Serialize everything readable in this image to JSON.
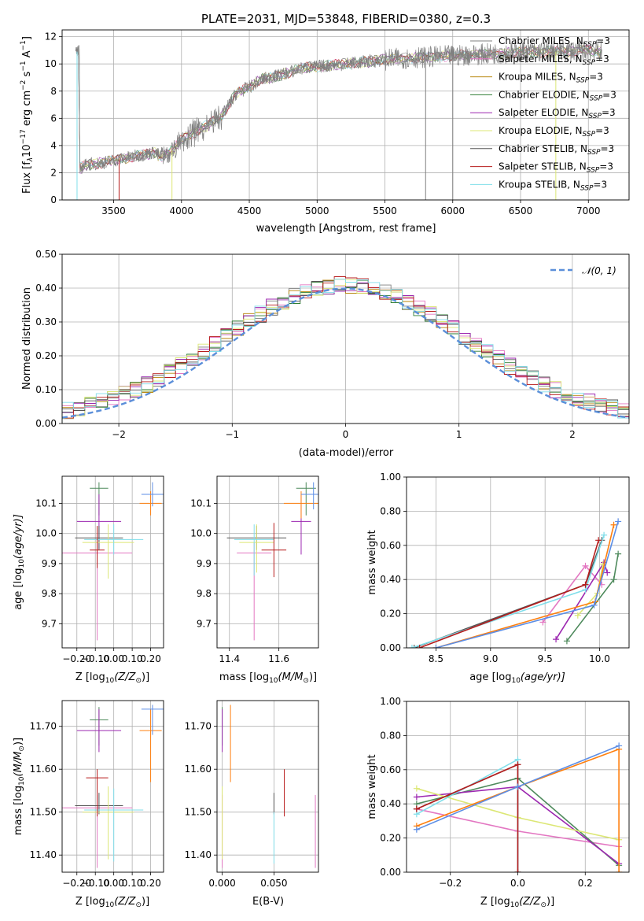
{
  "title": "PLATE=2031, MJD=53848, FIBERID=0380, z=0.3",
  "colors": {
    "model_palette": [
      "#7f7f7f",
      "#e377c2",
      "#b8860b",
      "#2e7d32",
      "#9c27b0",
      "#dce775",
      "#555555",
      "#b71c1c",
      "#80deea",
      "#ff7f0e",
      "#5c8ee6",
      "#4e8a5c"
    ],
    "gaussian": "#5b8fd9"
  },
  "legend_entries": [
    {
      "label": "Chabrier MILES, N",
      "sub": "SSP",
      "suffix": "=3",
      "color": "#7f7f7f"
    },
    {
      "label": "Salpeter MILES, N",
      "sub": "SSP",
      "suffix": "=3",
      "color": "#e377c2"
    },
    {
      "label": "Kroupa MILES, N",
      "sub": "SSP",
      "suffix": "=3",
      "color": "#b8860b"
    },
    {
      "label": "Chabrier ELODIE, N",
      "sub": "SSP",
      "suffix": "=3",
      "color": "#2e7d32"
    },
    {
      "label": "Salpeter ELODIE, N",
      "sub": "SSP",
      "suffix": "=3",
      "color": "#9c27b0"
    },
    {
      "label": "Kroupa ELODIE, N",
      "sub": "SSP",
      "suffix": "=3",
      "color": "#dce775"
    },
    {
      "label": "Chabrier STELIB, N",
      "sub": "SSP",
      "suffix": "=3",
      "color": "#555555"
    },
    {
      "label": "Salpeter STELIB, N",
      "sub": "SSP",
      "suffix": "=3",
      "color": "#b71c1c"
    },
    {
      "label": "Kroupa STELIB, N",
      "sub": "SSP",
      "suffix": "=3",
      "color": "#80deea"
    }
  ],
  "chart_data": [
    {
      "id": "spectrum",
      "type": "line",
      "xlabel": "wavelength [Angstrom, rest frame]",
      "ylabel": "Flux [f",
      "ylabel_sub": "λ",
      "ylabel_rest": "10",
      "ylabel_exp": "−17",
      "ylabel_tail": " erg cm",
      "ylabel_exp2": "−2",
      "ylabel_tail2": " s",
      "ylabel_exp3": "−1",
      "ylabel_tail3": " A",
      "ylabel_exp4": "−1",
      "ylabel_end": "]",
      "xlim": [
        3120,
        7300
      ],
      "ylim": [
        0,
        12.5
      ],
      "xticks": [
        3500,
        4000,
        4500,
        5000,
        5500,
        6000,
        6500,
        7000
      ],
      "yticks": [
        0,
        2,
        4,
        6,
        8,
        10,
        12
      ],
      "series_trend": {
        "x": [
          3250,
          3300,
          3400,
          3500,
          3600,
          3700,
          3800,
          3850,
          3900,
          3950,
          4000,
          4100,
          4200,
          4300,
          4400,
          4500,
          4600,
          4700,
          4800,
          4900,
          5000,
          5200,
          5400,
          5600,
          5800,
          6000,
          6200,
          6400,
          6600,
          6800,
          7000,
          7100
        ],
        "y": [
          2.3,
          2.6,
          2.7,
          2.9,
          3.1,
          3.3,
          3.5,
          3.2,
          3.4,
          3.8,
          4.5,
          5.0,
          5.5,
          6.2,
          7.8,
          8.3,
          8.9,
          9.1,
          9.4,
          9.7,
          9.8,
          10.0,
          10.2,
          10.4,
          10.5,
          10.6,
          10.7,
          10.8,
          10.9,
          10.9,
          11.0,
          10.9
        ]
      }
    },
    {
      "id": "residuals",
      "type": "histogram",
      "xlabel": "(data-model)/error",
      "ylabel": "Normed distribution",
      "xlim": [
        -2.5,
        2.5
      ],
      "ylim": [
        0,
        0.5
      ],
      "xticks": [
        -2,
        -1,
        0,
        1,
        2
      ],
      "yticks": [
        0.0,
        0.1,
        0.2,
        0.3,
        0.4,
        0.5
      ],
      "legend": "𝒩(0, 1)",
      "bins": 50
    },
    {
      "id": "age-vs-Z",
      "type": "scatter",
      "xlabel": "Z [log",
      "xlabel_sub": "10",
      "xlabel_rest": "(Z/Z",
      "xlabel_sub2": "⊙",
      "xlabel_end": ")]",
      "ylabel": "age  [log",
      "ylabel_sub": "10",
      "ylabel_rest": "(age/yr)]",
      "xlim": [
        -0.28,
        0.27
      ],
      "ylim": [
        9.62,
        10.19
      ],
      "xticks": [
        -0.2,
        -0.1,
        0.0,
        0.1,
        0.2
      ],
      "yticks": [
        9.7,
        9.8,
        9.9,
        10.0,
        10.1
      ],
      "points": [
        {
          "x": -0.09,
          "y": 9.935,
          "xerr": 0.19,
          "yerr": [
            0.29,
            0.035
          ],
          "color": "#e377c2"
        },
        {
          "x": -0.08,
          "y": 10.15,
          "xerr": 0.05,
          "yerr": [
            0.09,
            0.02
          ],
          "color": "#4e8a5c"
        },
        {
          "x": -0.08,
          "y": 10.04,
          "xerr": 0.12,
          "yerr": [
            0.09,
            0.09
          ],
          "color": "#9c27b0"
        },
        {
          "x": -0.08,
          "y": 9.985,
          "xerr": 0.13,
          "yerr": [
            0.04,
            0.04
          ],
          "color": "#555555"
        },
        {
          "x": -0.03,
          "y": 9.97,
          "xerr": 0.14,
          "yerr": [
            0.12,
            0.06
          ],
          "color": "#dce775"
        },
        {
          "x": 0.0,
          "y": 9.98,
          "xerr": 0.16,
          "yerr": [
            0.05,
            0.05
          ],
          "color": "#80deea"
        },
        {
          "x": -0.09,
          "y": 9.945,
          "xerr": 0.04,
          "yerr": [
            0.06,
            0.08
          ],
          "color": "#b71c1c"
        },
        {
          "x": 0.2,
          "y": 10.1,
          "xerr": 0.06,
          "yerr": [
            0.04,
            0.04
          ],
          "color": "#ff7f0e"
        },
        {
          "x": 0.21,
          "y": 10.13,
          "xerr": 0.06,
          "yerr": [
            0.04,
            0.04
          ],
          "color": "#5c8ee6"
        }
      ]
    },
    {
      "id": "age-vs-mass",
      "type": "scatter",
      "xlabel": "mass [log",
      "xlabel_sub": "10",
      "xlabel_rest": "(M/M",
      "xlabel_sub2": "⊙",
      "xlabel_end": ")]",
      "xlim": [
        11.35,
        11.76
      ],
      "ylim": [
        9.62,
        10.19
      ],
      "xticks": [
        11.4,
        11.6
      ],
      "yticks": [
        9.7,
        9.8,
        9.9,
        10.0,
        10.1
      ],
      "points": [
        {
          "x": 11.5,
          "y": 9.935,
          "xerr": 0.07,
          "yerr": [
            0.29,
            0.035
          ],
          "color": "#e377c2"
        },
        {
          "x": 11.71,
          "y": 10.15,
          "xerr": 0.04,
          "yerr": [
            0.09,
            0.02
          ],
          "color": "#4e8a5c"
        },
        {
          "x": 11.69,
          "y": 10.04,
          "xerr": 0.04,
          "yerr": [
            0.11,
            0.09
          ],
          "color": "#9c27b0"
        },
        {
          "x": 11.51,
          "y": 9.985,
          "xerr": 0.12,
          "yerr": [
            0.04,
            0.04
          ],
          "color": "#555555"
        },
        {
          "x": 11.51,
          "y": 9.97,
          "xerr": 0.07,
          "yerr": [
            0.1,
            0.06
          ],
          "color": "#dce775"
        },
        {
          "x": 11.5,
          "y": 9.98,
          "xerr": 0.08,
          "yerr": [
            0.12,
            0.05
          ],
          "color": "#80deea"
        },
        {
          "x": 11.58,
          "y": 9.945,
          "xerr": 0.05,
          "yerr": [
            0.09,
            0.09
          ],
          "color": "#b71c1c"
        },
        {
          "x": 11.69,
          "y": 10.1,
          "xerr": 0.07,
          "yerr": [
            0.05,
            0.04
          ],
          "color": "#ff7f0e"
        },
        {
          "x": 11.74,
          "y": 10.13,
          "xerr": 0.05,
          "yerr": [
            0.05,
            0.04
          ],
          "color": "#5c8ee6"
        }
      ]
    },
    {
      "id": "mass-weight-vs-age",
      "type": "line",
      "xlabel": "age  [log",
      "xlabel_sub": "10",
      "xlabel_rest": "(age/yr)]",
      "ylabel": "mass weight",
      "xlim": [
        8.23,
        10.27
      ],
      "ylim": [
        0,
        1.0
      ],
      "xticks": [
        8.5,
        9.0,
        9.5,
        10.0
      ],
      "yticks": [
        0.0,
        0.2,
        0.4,
        0.6,
        0.8,
        1.0
      ],
      "series": [
        {
          "color": "#e377c2",
          "x": [
            9.48,
            9.87,
            10.02
          ],
          "y": [
            0.15,
            0.48,
            0.37
          ]
        },
        {
          "color": "#4e8a5c",
          "x": [
            9.7,
            10.13,
            10.17
          ],
          "y": [
            0.04,
            0.4,
            0.55
          ]
        },
        {
          "color": "#9c27b0",
          "x": [
            9.6,
            10.04,
            10.07
          ],
          "y": [
            0.05,
            0.5,
            0.44
          ]
        },
        {
          "color": "#555555",
          "x": [
            8.3,
            9.87,
            10.02
          ],
          "y": [
            0.0,
            0.37,
            0.63
          ]
        },
        {
          "color": "#dce775",
          "x": [
            9.8,
            9.98,
            10.03
          ],
          "y": [
            0.19,
            0.32,
            0.49
          ]
        },
        {
          "color": "#80deea",
          "x": [
            8.28,
            9.87,
            10.04
          ],
          "y": [
            0.0,
            0.34,
            0.66
          ]
        },
        {
          "color": "#b71c1c",
          "x": [
            8.35,
            9.87,
            9.99
          ],
          "y": [
            0.0,
            0.37,
            0.63
          ]
        },
        {
          "color": "#ff7f0e",
          "x": [
            8.5,
            9.96,
            10.13
          ],
          "y": [
            0.0,
            0.27,
            0.72
          ]
        },
        {
          "color": "#5c8ee6",
          "x": [
            8.5,
            9.95,
            10.17
          ],
          "y": [
            0.0,
            0.25,
            0.74
          ]
        }
      ]
    },
    {
      "id": "mass-vs-Z",
      "type": "scatter",
      "xlabel": "Z [log",
      "xlabel_sub": "10",
      "xlabel_rest": "(Z/Z",
      "xlabel_sub2": "⊙",
      "xlabel_end": ")]",
      "ylabel": "mass [log",
      "ylabel_sub": "10",
      "ylabel_rest": "(M/M",
      "ylabel_sub2": "⊙",
      "ylabel_end": ")]",
      "xlim": [
        -0.28,
        0.27
      ],
      "ylim": [
        11.36,
        11.76
      ],
      "xticks": [
        -0.2,
        -0.1,
        0.0,
        0.1,
        0.2
      ],
      "yticks": [
        11.4,
        11.5,
        11.6,
        11.7
      ],
      "points": [
        {
          "x": -0.09,
          "y": 11.51,
          "xerr": 0.19,
          "yerr": [
            0.14,
            0.03
          ],
          "color": "#e377c2"
        },
        {
          "x": -0.08,
          "y": 11.715,
          "xerr": 0.05,
          "yerr": [
            0.06,
            0.03
          ],
          "color": "#4e8a5c"
        },
        {
          "x": -0.08,
          "y": 11.69,
          "xerr": 0.12,
          "yerr": [
            0.05,
            0.05
          ],
          "color": "#9c27b0"
        },
        {
          "x": -0.08,
          "y": 11.515,
          "xerr": 0.13,
          "yerr": [
            0.02,
            0.03
          ],
          "color": "#555555"
        },
        {
          "x": -0.03,
          "y": 11.5,
          "xerr": 0.14,
          "yerr": [
            0.11,
            0.06
          ],
          "color": "#dce775"
        },
        {
          "x": 0.0,
          "y": 11.505,
          "xerr": 0.16,
          "yerr": [
            0.12,
            0.05
          ],
          "color": "#80deea"
        },
        {
          "x": -0.09,
          "y": 11.58,
          "xerr": 0.06,
          "yerr": [
            0.09,
            0.02
          ],
          "color": "#b71c1c"
        },
        {
          "x": 0.2,
          "y": 11.69,
          "xerr": 0.06,
          "yerr": [
            0.12,
            0.05
          ],
          "color": "#ff7f0e"
        },
        {
          "x": 0.21,
          "y": 11.74,
          "xerr": 0.06,
          "yerr": [
            0.06,
            0.01
          ],
          "color": "#5c8ee6"
        }
      ]
    },
    {
      "id": "mass-vs-ebv",
      "type": "scatter",
      "xlabel": "E(B-V)",
      "xlim": [
        -0.005,
        0.093
      ],
      "ylim": [
        11.36,
        11.76
      ],
      "xticks": [
        0.0,
        0.05
      ],
      "yticks": [
        11.4,
        11.5,
        11.6,
        11.7
      ],
      "points": [
        {
          "x": 0.0,
          "y": 11.51,
          "xerr": 0.0,
          "yerr": [
            0.14,
            0.03
          ],
          "color": "#e377c2"
        },
        {
          "x": 0.0,
          "y": 11.715,
          "xerr": 0.0,
          "yerr": [
            0.06,
            0.03
          ],
          "color": "#4e8a5c"
        },
        {
          "x": 0.0,
          "y": 11.69,
          "xerr": 0.0,
          "yerr": [
            0.05,
            0.05
          ],
          "color": "#9c27b0"
        },
        {
          "x": 0.05,
          "y": 11.515,
          "xerr": 0.0,
          "yerr": [
            0.02,
            0.03
          ],
          "color": "#555555"
        },
        {
          "x": 0.0,
          "y": 11.5,
          "xerr": 0.0,
          "yerr": [
            0.11,
            0.06
          ],
          "color": "#dce775"
        },
        {
          "x": 0.05,
          "y": 11.45,
          "xerr": 0.0,
          "yerr": [
            0.07,
            0.05
          ],
          "color": "#80deea"
        },
        {
          "x": 0.06,
          "y": 11.55,
          "xerr": 0.0,
          "yerr": [
            0.06,
            0.05
          ],
          "color": "#b71c1c"
        },
        {
          "x": 0.008,
          "y": 11.66,
          "xerr": 0.0,
          "yerr": [
            0.09,
            0.09
          ],
          "color": "#ff7f0e"
        },
        {
          "x": 0.09,
          "y": 11.45,
          "xerr": 0.0,
          "yerr": [
            0.08,
            0.09
          ],
          "color": "#e377c2"
        }
      ]
    },
    {
      "id": "mass-weight-vs-Z",
      "type": "line",
      "xlabel": "Z [log",
      "xlabel_sub": "10",
      "xlabel_rest": "(Z/Z",
      "xlabel_sub2": "⊙",
      "xlabel_end": ")]",
      "ylabel": "mass weight",
      "xlim": [
        -0.33,
        0.33
      ],
      "ylim": [
        0,
        1.0
      ],
      "xticks": [
        -0.2,
        0.0,
        0.2
      ],
      "yticks": [
        0.0,
        0.2,
        0.4,
        0.6,
        0.8,
        1.0
      ],
      "series": [
        {
          "color": "#e377c2",
          "x": [
            -0.3,
            0.0,
            0.3
          ],
          "y": [
            0.37,
            0.24,
            0.15
          ]
        },
        {
          "color": "#4e8a5c",
          "x": [
            -0.3,
            0.0,
            0.3
          ],
          "y": [
            0.4,
            0.55,
            0.04
          ]
        },
        {
          "color": "#9c27b0",
          "x": [
            -0.3,
            0.0,
            0.3
          ],
          "y": [
            0.44,
            0.5,
            0.05
          ]
        },
        {
          "color": "#555555",
          "x": [
            -0.3,
            0.0,
            0.0
          ],
          "y": [
            0.37,
            0.63,
            0.0
          ]
        },
        {
          "color": "#dce775",
          "x": [
            -0.3,
            0.0,
            0.3
          ],
          "y": [
            0.49,
            0.32,
            0.19
          ]
        },
        {
          "color": "#80deea",
          "x": [
            -0.3,
            0.0,
            0.0
          ],
          "y": [
            0.34,
            0.66,
            0.0
          ]
        },
        {
          "color": "#b71c1c",
          "x": [
            -0.3,
            0.0,
            0.0
          ],
          "y": [
            0.37,
            0.63,
            0.0
          ]
        },
        {
          "color": "#ff7f0e",
          "x": [
            -0.3,
            0.0,
            0.3,
            0.3
          ],
          "y": [
            0.27,
            0.5,
            0.72,
            0.0
          ]
        },
        {
          "color": "#5c8ee6",
          "x": [
            -0.3,
            0.0,
            0.3
          ],
          "y": [
            0.25,
            0.5,
            0.74
          ]
        }
      ]
    }
  ]
}
